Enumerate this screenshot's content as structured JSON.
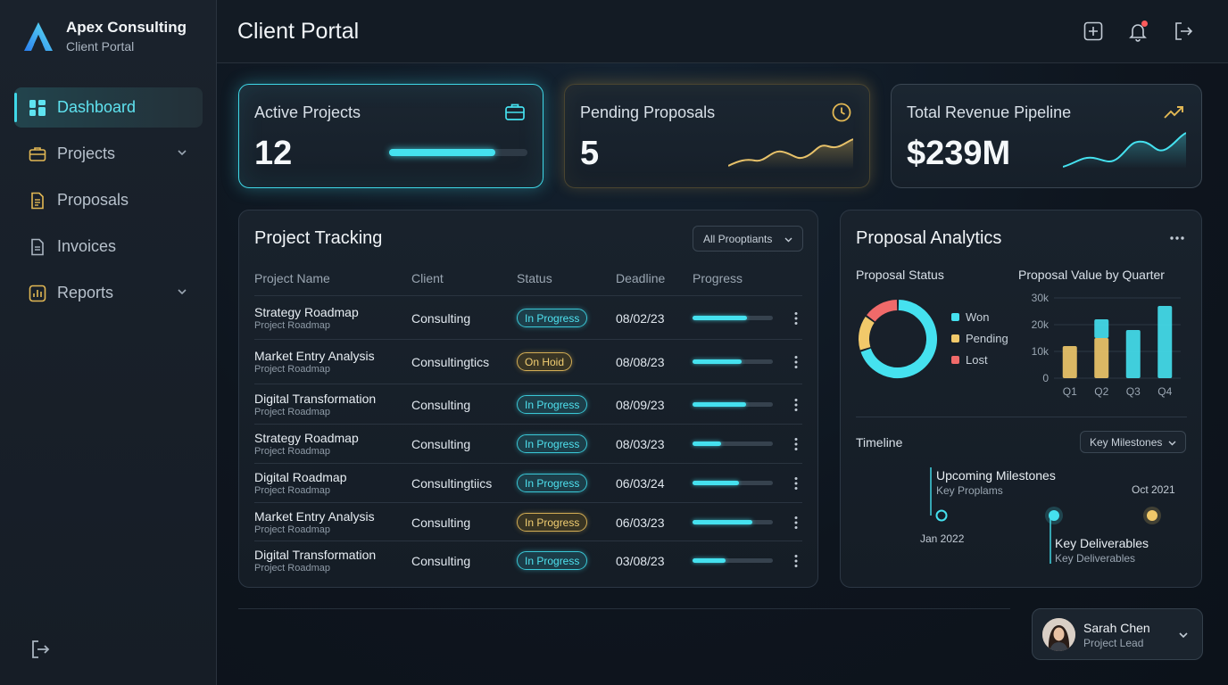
{
  "brand": {
    "name": "Apex Consulting",
    "subtitle": "Client Portal",
    "logo_icon": "apex-logo-icon"
  },
  "sidebar": {
    "items": [
      {
        "label": "Dashboard",
        "icon": "grid-icon",
        "active": true
      },
      {
        "label": "Projects",
        "icon": "briefcase-icon",
        "has_chevron": true
      },
      {
        "label": "Proposals",
        "icon": "document-icon"
      },
      {
        "label": "Invoices",
        "icon": "invoice-icon"
      },
      {
        "label": "Reports",
        "icon": "report-icon",
        "has_chevron": true
      }
    ],
    "logout_icon": "logout-icon"
  },
  "header": {
    "title": "Client Portal",
    "icons": [
      "add-icon",
      "bell-icon",
      "logout-icon"
    ]
  },
  "stats": [
    {
      "label": "Active Projects",
      "value": "12",
      "icon": "briefcase-icon",
      "progress": 0.77
    },
    {
      "label": "Pending Proposals",
      "value": "5",
      "icon": "clock-icon"
    },
    {
      "label": "Total Revenue Pipeline",
      "value": "$239M",
      "icon": "trending-up-icon"
    }
  ],
  "project_tracking": {
    "title": "Project Tracking",
    "filter_label": "All Prooptiants",
    "columns": [
      "Project Name",
      "Client",
      "Status",
      "Deadline",
      "Progress"
    ],
    "rows": [
      {
        "name": "Strategy Roadmap",
        "sub": "Project Roadmap",
        "client": "Consulting",
        "status": "In Progress",
        "status_type": "progress",
        "deadline": "08/02/23",
        "progress": 0.68
      },
      {
        "name": "Market Entry Analysis",
        "sub": "Project Roadmap",
        "client": "Consultingtics",
        "status": "On Hoid",
        "status_type": "hold",
        "deadline": "08/08/23",
        "progress": 0.61
      },
      {
        "name": "Digital Transformation",
        "sub": "Project Roadmap",
        "client": "Consulting",
        "status": "In Progress",
        "status_type": "progress",
        "deadline": "08/09/23",
        "progress": 0.67
      },
      {
        "name": "Strategy Roadmap",
        "sub": "Project Roadmap",
        "client": "Consulting",
        "status": "In Progress",
        "status_type": "progress",
        "deadline": "08/03/23",
        "progress": 0.36
      },
      {
        "name": "Digital Roadmap",
        "sub": "Project Roadmap",
        "client": "Consultingtiics",
        "status": "In Progress",
        "status_type": "progress",
        "deadline": "06/03/24",
        "progress": 0.58
      },
      {
        "name": "Market Entry Analysis",
        "sub": "Project Roadmap",
        "client": "Consulting",
        "status": "In Progress",
        "status_type": "hold",
        "deadline": "06/03/23",
        "progress": 0.74
      },
      {
        "name": "Digital Transformation",
        "sub": "Project Roadmap",
        "client": "Consulting",
        "status": "In Progress",
        "status_type": "progress",
        "deadline": "03/08/23",
        "progress": 0.41
      }
    ]
  },
  "proposal_analytics": {
    "title": "Proposal Analytics",
    "status_title": "Proposal Status",
    "value_title": "Proposal Value by Quarter",
    "legend": [
      {
        "label": "Won",
        "color": "#45e1ef"
      },
      {
        "label": "Pending",
        "color": "#f1c96a"
      },
      {
        "label": "Lost",
        "color": "#f06a6a"
      }
    ],
    "timeline_title": "Timeline",
    "timeline_filter": "Key Milestones",
    "milestones": {
      "upcoming_title": "Upcoming Milestones",
      "upcoming_sub": "Key Proplams",
      "deliverables_title": "Key Deliverables",
      "deliverables_sub": "Key Deliverables",
      "date_left": "Jan 2022",
      "date_right": "Oct 2021"
    }
  },
  "chart_data": [
    {
      "type": "pie",
      "title": "Proposal Status",
      "categories": [
        "Won",
        "Pending",
        "Lost"
      ],
      "values": [
        70,
        15,
        15
      ],
      "colors": [
        "#45e1ef",
        "#f1c96a",
        "#f06a6a"
      ]
    },
    {
      "type": "bar",
      "title": "Proposal Value by Quarter",
      "categories": [
        "Q1",
        "Q2",
        "Q3",
        "Q4"
      ],
      "y_ticks": [
        "0",
        "10k",
        "20k",
        "30k"
      ],
      "ylim": [
        0,
        30000
      ],
      "series": [
        {
          "name": "Pending",
          "values": [
            12000,
            15000,
            0,
            0
          ],
          "color": "#f1c96a"
        },
        {
          "name": "Won",
          "values": [
            0,
            7000,
            18000,
            27000
          ],
          "color": "#45e1ef"
        }
      ]
    }
  ],
  "user": {
    "name": "Sarah Chen",
    "role": "Project Lead"
  }
}
